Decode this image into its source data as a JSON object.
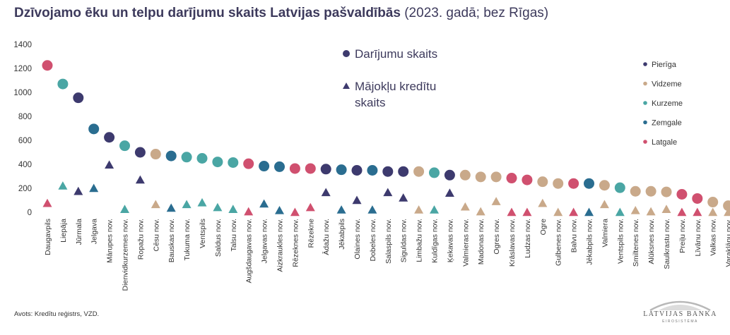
{
  "title": {
    "bold": "Dzīvojamo ēku un telpu darījumu skaits Latvijas pašvaldībās",
    "normal": " (2023. gadā; bez Rīgas)"
  },
  "source": "Avots: Kredītu reģistrs, VZD.",
  "logo": {
    "name": "LATVIJAS BANKA",
    "sub": "EIROSISTĒMA"
  },
  "colors": {
    "Pierīga": "#3d3a6e",
    "Vidzeme": "#c9a98a",
    "Kurzeme": "#4aa6a4",
    "Zemgale": "#2a6d90",
    "Latgale": "#d0506f"
  },
  "chart_data": {
    "type": "scatter",
    "ylim": [
      0,
      1400
    ],
    "yticks": [
      0,
      200,
      400,
      600,
      800,
      1000,
      1200,
      1400
    ],
    "series_labels": {
      "transactions": "Darījumu skaits",
      "credits_line1": "Mājokļu kredītu",
      "credits_line2": "skaits"
    },
    "regions": [
      "Pierīga",
      "Vidzeme",
      "Kurzeme",
      "Zemgale",
      "Latgale"
    ],
    "municipalities": [
      {
        "name": "Daugavpils",
        "region": "Latgale",
        "transactions": 1225,
        "credits": 75
      },
      {
        "name": "Liepāja",
        "region": "Kurzeme",
        "transactions": 1070,
        "credits": 220
      },
      {
        "name": "Jūrmala",
        "region": "Pierīga",
        "transactions": 955,
        "credits": 175
      },
      {
        "name": "Jelgava",
        "region": "Zemgale",
        "transactions": 695,
        "credits": 200
      },
      {
        "name": "Mārupes nov.",
        "region": "Pierīga",
        "transactions": 625,
        "credits": 395
      },
      {
        "name": "Dienvidkurzemes nov.",
        "region": "Kurzeme",
        "transactions": 555,
        "credits": 25
      },
      {
        "name": "Ropažu nov.",
        "region": "Pierīga",
        "transactions": 500,
        "credits": 270
      },
      {
        "name": "Cēsu nov.",
        "region": "Vidzeme",
        "transactions": 485,
        "credits": 65
      },
      {
        "name": "Bauskas nov.",
        "region": "Zemgale",
        "transactions": 470,
        "credits": 35
      },
      {
        "name": "Tukuma nov.",
        "region": "Kurzeme",
        "transactions": 460,
        "credits": 65
      },
      {
        "name": "Ventspils",
        "region": "Kurzeme",
        "transactions": 450,
        "credits": 80
      },
      {
        "name": "Saldus nov.",
        "region": "Kurzeme",
        "transactions": 420,
        "credits": 40
      },
      {
        "name": "Talsu nov.",
        "region": "Kurzeme",
        "transactions": 415,
        "credits": 25
      },
      {
        "name": "Augšdaugavas nov.",
        "region": "Latgale",
        "transactions": 405,
        "credits": 5
      },
      {
        "name": "Jelgavas nov.",
        "region": "Zemgale",
        "transactions": 385,
        "credits": 70
      },
      {
        "name": "Aizkraukles nov.",
        "region": "Zemgale",
        "transactions": 380,
        "credits": 15
      },
      {
        "name": "Rēzeknes nov.",
        "region": "Latgale",
        "transactions": 365,
        "credits": 0
      },
      {
        "name": "Rēzekne",
        "region": "Latgale",
        "transactions": 365,
        "credits": 40
      },
      {
        "name": "Ādažu nov.",
        "region": "Pierīga",
        "transactions": 360,
        "credits": 165
      },
      {
        "name": "Jēkabpils",
        "region": "Zemgale",
        "transactions": 355,
        "credits": 20
      },
      {
        "name": "Olaines nov.",
        "region": "Pierīga",
        "transactions": 350,
        "credits": 100
      },
      {
        "name": "Dobeles nov.",
        "region": "Zemgale",
        "transactions": 350,
        "credits": 20
      },
      {
        "name": "Salaspils nov.",
        "region": "Pierīga",
        "transactions": 340,
        "credits": 165
      },
      {
        "name": "Siguldas nov.",
        "region": "Pierīga",
        "transactions": 340,
        "credits": 120
      },
      {
        "name": "Limbažu nov.",
        "region": "Vidzeme",
        "transactions": 340,
        "credits": 20
      },
      {
        "name": "Kuldīgas nov.",
        "region": "Kurzeme",
        "transactions": 330,
        "credits": 20
      },
      {
        "name": "Ķekavas nov.",
        "region": "Pierīga",
        "transactions": 310,
        "credits": 160
      },
      {
        "name": "Valmieras nov.",
        "region": "Vidzeme",
        "transactions": 310,
        "credits": 45
      },
      {
        "name": "Madonas nov.",
        "region": "Vidzeme",
        "transactions": 295,
        "credits": 5
      },
      {
        "name": "Ogres nov.",
        "region": "Vidzeme",
        "transactions": 295,
        "credits": 90
      },
      {
        "name": "Krāslavas nov.",
        "region": "Latgale",
        "transactions": 285,
        "credits": 0
      },
      {
        "name": "Ludzas nov.",
        "region": "Latgale",
        "transactions": 270,
        "credits": 0
      },
      {
        "name": "Ogre",
        "region": "Vidzeme",
        "transactions": 255,
        "credits": 75
      },
      {
        "name": "Gulbenes nov.",
        "region": "Vidzeme",
        "transactions": 240,
        "credits": 0
      },
      {
        "name": "Balvu nov.",
        "region": "Latgale",
        "transactions": 240,
        "credits": 0
      },
      {
        "name": "Jēkabpils nov.",
        "region": "Zemgale",
        "transactions": 240,
        "credits": 0
      },
      {
        "name": "Valmiera",
        "region": "Vidzeme",
        "transactions": 225,
        "credits": 65
      },
      {
        "name": "Ventspils nov.",
        "region": "Kurzeme",
        "transactions": 205,
        "credits": 0
      },
      {
        "name": "Smiltenes nov.",
        "region": "Vidzeme",
        "transactions": 175,
        "credits": 15
      },
      {
        "name": "Alūksnes nov.",
        "region": "Vidzeme",
        "transactions": 175,
        "credits": 5
      },
      {
        "name": "Saulkrastu nov.",
        "region": "Vidzeme",
        "transactions": 170,
        "credits": 25
      },
      {
        "name": "Preiļu nov.",
        "region": "Latgale",
        "transactions": 150,
        "credits": 0
      },
      {
        "name": "Līvānu nov.",
        "region": "Latgale",
        "transactions": 115,
        "credits": 0
      },
      {
        "name": "Valkas nov.",
        "region": "Vidzeme",
        "transactions": 85,
        "credits": 0
      },
      {
        "name": "Varakļānu nov.",
        "region": "Vidzeme",
        "transactions": 55,
        "credits": 0
      }
    ]
  }
}
